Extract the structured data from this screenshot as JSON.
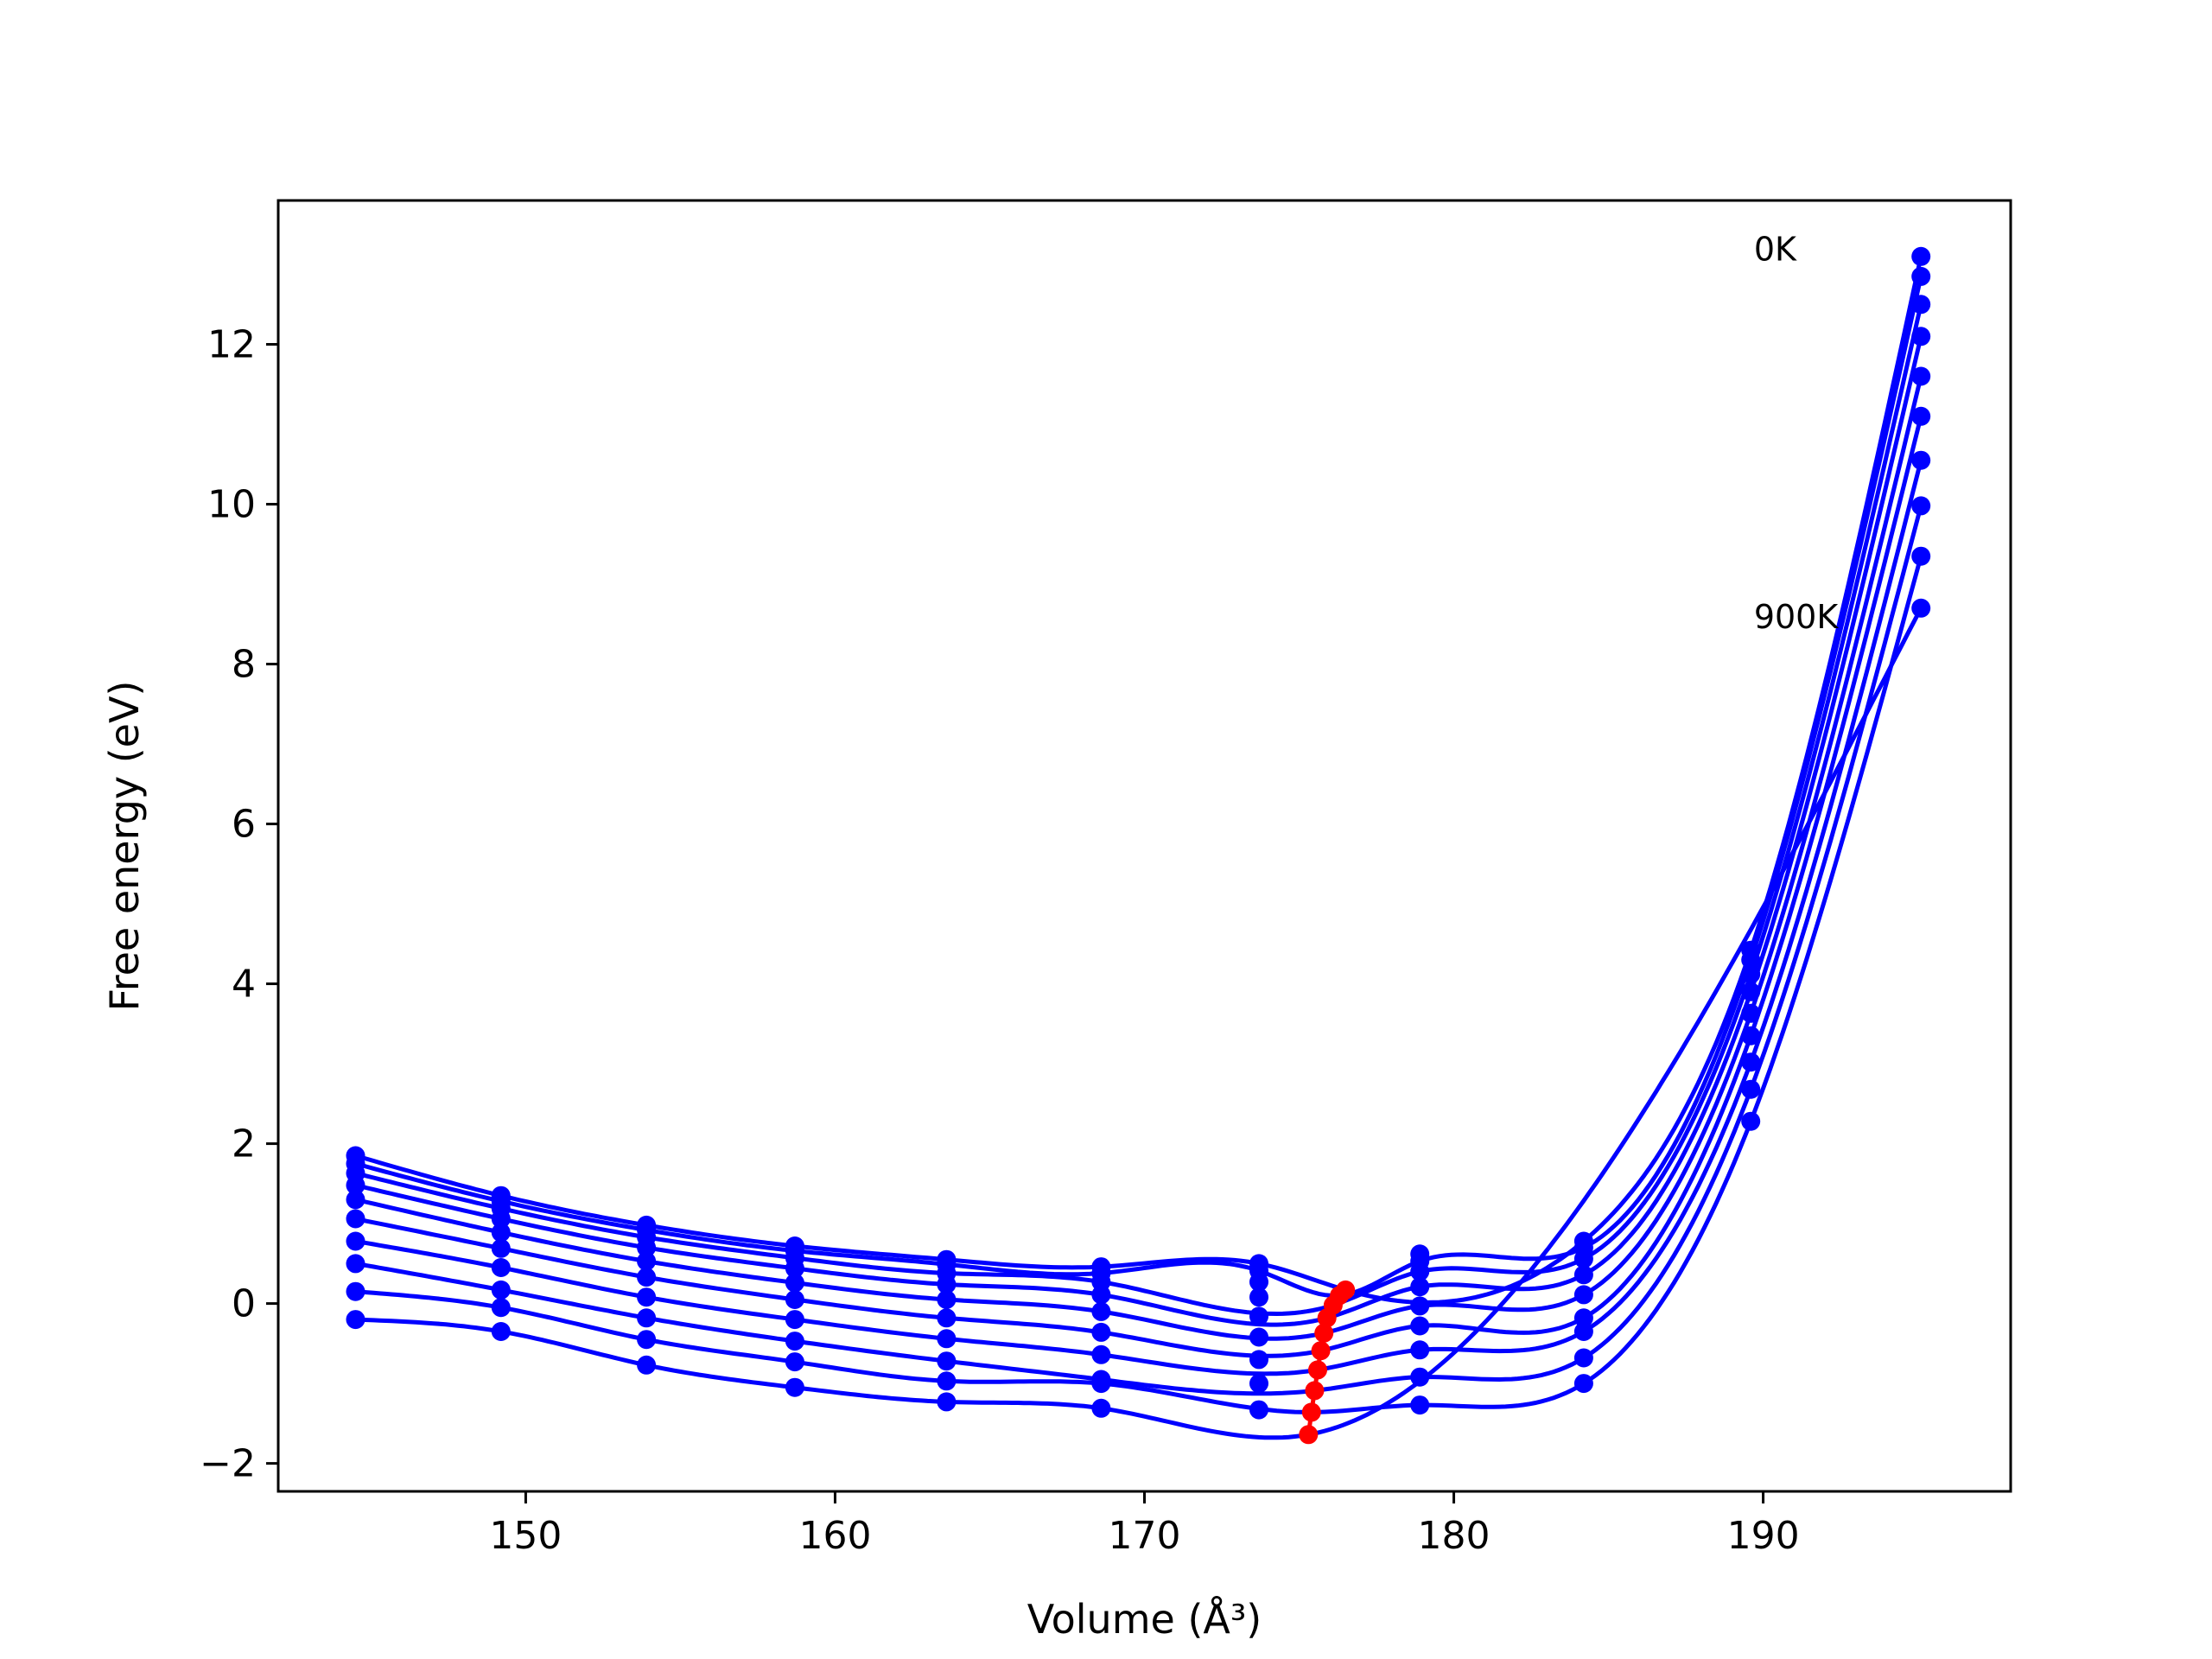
{
  "chart_data": {
    "type": "scatter",
    "title": "",
    "xlabel": "Volume (Å³)",
    "ylabel": "Free energy (eV)",
    "xlim": [
      142,
      198
    ],
    "ylim": [
      -2.35,
      13.8
    ],
    "xticks": [
      150,
      160,
      170,
      180,
      190
    ],
    "yticks": [
      -2,
      0,
      2,
      4,
      6,
      8,
      10,
      12
    ],
    "xtick_labels": [
      "150",
      "160",
      "170",
      "180",
      "190"
    ],
    "ytick_labels": [
      "−2",
      "0",
      "2",
      "4",
      "6",
      "8",
      "10",
      "12"
    ],
    "grid": false,
    "legend": "none",
    "colors": {
      "fit": "#0000ff",
      "points": "#0000ff",
      "minima": "#ff0000",
      "axes": "#000000"
    },
    "volumes": [
      144.5,
      149.2,
      153.9,
      158.7,
      163.6,
      168.6,
      173.7,
      178.9,
      184.2,
      189.6,
      195.1
    ],
    "annotations": [
      {
        "text": "0K",
        "x": 189.7,
        "y": 13.2
      },
      {
        "text": "900K",
        "x": 189.7,
        "y": 8.6
      }
    ],
    "series": [
      {
        "values": [
          1.85,
          1.35,
          0.98,
          0.72,
          0.55,
          0.46,
          0.5,
          0.62,
          0.78,
          4.42,
          13.1
        ]
      },
      {
        "values": [
          1.75,
          1.28,
          0.92,
          0.66,
          0.49,
          0.38,
          0.41,
          0.53,
          0.7,
          4.3,
          12.85
        ]
      },
      {
        "values": [
          1.63,
          1.19,
          0.83,
          0.57,
          0.38,
          0.27,
          0.27,
          0.4,
          0.56,
          4.12,
          12.5
        ]
      },
      {
        "values": [
          1.48,
          1.06,
          0.7,
          0.44,
          0.24,
          0.11,
          0.08,
          0.21,
          0.36,
          3.9,
          12.1
        ]
      },
      {
        "values": [
          1.3,
          0.89,
          0.53,
          0.26,
          0.05,
          -0.1,
          -0.16,
          -0.03,
          0.11,
          3.63,
          11.6
        ]
      },
      {
        "values": [
          1.06,
          0.69,
          0.33,
          0.05,
          -0.18,
          -0.36,
          -0.42,
          -0.28,
          -0.18,
          3.35,
          11.1
        ]
      },
      {
        "values": [
          0.78,
          0.45,
          0.08,
          -0.2,
          -0.44,
          -0.64,
          -0.7,
          -0.58,
          -0.35,
          3.02,
          10.55
        ]
      },
      {
        "values": [
          0.5,
          0.17,
          -0.18,
          -0.47,
          -0.72,
          -0.95,
          -1.0,
          -0.92,
          -0.68,
          2.68,
          9.98
        ]
      },
      {
        "values": [
          0.15,
          -0.05,
          -0.45,
          -0.73,
          -0.97,
          -1.0,
          -1.33,
          -1.27,
          -1.0,
          2.28,
          9.35
        ]
      },
      {
        "values": [
          -0.2,
          -0.35,
          -0.77,
          -1.05,
          -1.23,
          -1.31,
          null,
          null,
          null,
          null,
          8.7
        ]
      }
    ],
    "minima": {
      "x": [
        176.5,
        176.3,
        176.1,
        175.9,
        175.8,
        175.7,
        175.6,
        175.5,
        175.4,
        175.3
      ],
      "y": [
        0.17,
        0.1,
        -0.02,
        -0.18,
        -0.37,
        -0.59,
        -0.83,
        -1.09,
        -1.36,
        -1.64
      ]
    }
  }
}
